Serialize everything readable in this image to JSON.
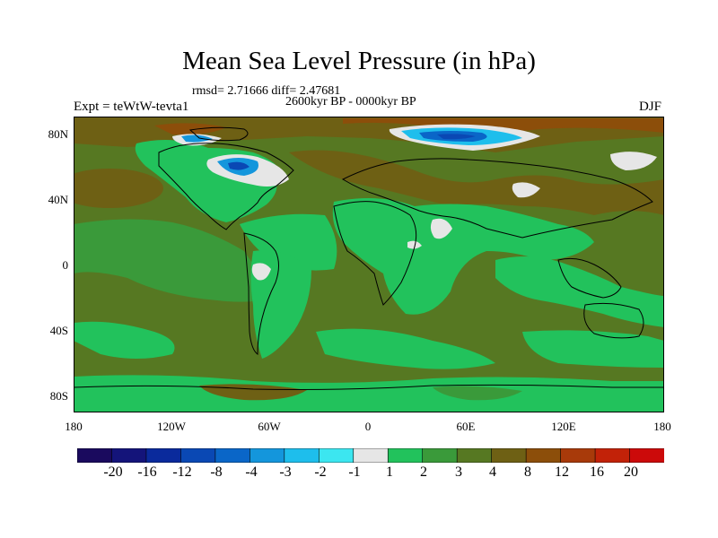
{
  "title": "Mean Sea Level Pressure (in hPa)",
  "stats": "rmsd= 2.71666  diff= 2.47681",
  "period": "2600kyr BP - 0000kyr BP",
  "experiment": "Expt = teWtW-tevta1",
  "season": "DJF",
  "lat_labels": [
    "80N",
    "40N",
    "0",
    "40S",
    "80S"
  ],
  "lon_labels": [
    "180",
    "120W",
    "60W",
    "0",
    "60E",
    "120E",
    "180"
  ],
  "colorbar": {
    "labels": [
      "-20",
      "-16",
      "-12",
      "-8",
      "-4",
      "-3",
      "-2",
      "-1",
      "1",
      "2",
      "3",
      "4",
      "8",
      "12",
      "16",
      "20"
    ],
    "colors": [
      "#1a0a5e",
      "#14147a",
      "#0a2a9c",
      "#0a48b4",
      "#0a66c8",
      "#1496dc",
      "#1ebeec",
      "#3ce6f0",
      "#e6e6e6",
      "#22c25c",
      "#3a9a3a",
      "#567822",
      "#6e6014",
      "#8c4e0a",
      "#a83a0a",
      "#c22208",
      "#cc0a0a"
    ]
  }
}
